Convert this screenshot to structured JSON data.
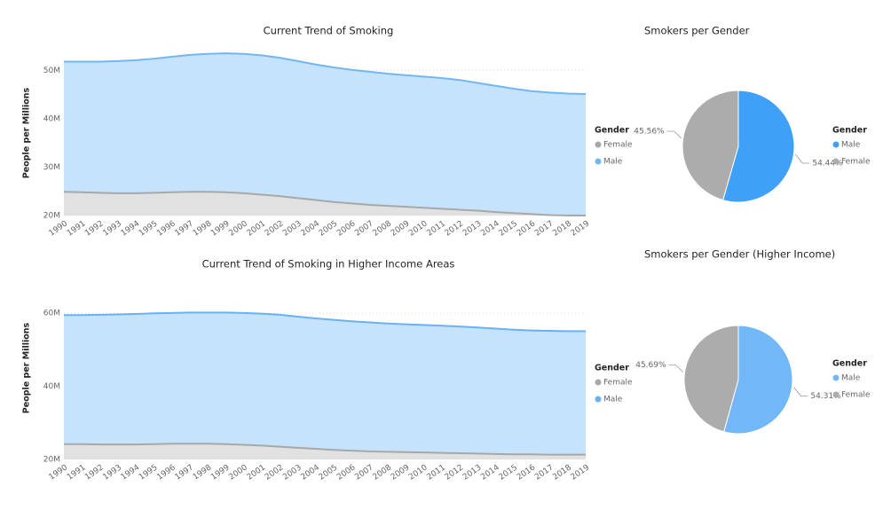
{
  "chart_data": [
    {
      "type": "area",
      "title": "Current Trend of Smoking",
      "y_label": "People per Millions",
      "categories": [
        "1990",
        "1991",
        "1992",
        "1993",
        "1994",
        "1995",
        "1996",
        "1997",
        "1998",
        "1999",
        "2000",
        "2001",
        "2002",
        "2003",
        "2004",
        "2005",
        "2006",
        "2007",
        "2008",
        "2009",
        "2010",
        "2011",
        "2012",
        "2013",
        "2014",
        "2015",
        "2016",
        "2017",
        "2018",
        "2019"
      ],
      "series": [
        {
          "name": "Female",
          "color": "#a8a8a8",
          "fill": "#e1e1e1",
          "values": [
            24.9,
            24.8,
            24.7,
            24.6,
            24.6,
            24.7,
            24.8,
            24.9,
            24.9,
            24.8,
            24.6,
            24.3,
            24.0,
            23.6,
            23.2,
            22.8,
            22.5,
            22.2,
            22.0,
            21.8,
            21.6,
            21.4,
            21.2,
            21.0,
            20.7,
            20.5,
            20.3,
            20.1,
            20.0,
            20.0
          ]
        },
        {
          "name": "Male",
          "color": "#72b6f5",
          "fill": "#c6e3fd",
          "values": [
            51.8,
            51.8,
            51.8,
            51.9,
            52.1,
            52.4,
            52.8,
            53.2,
            53.4,
            53.5,
            53.4,
            53.1,
            52.6,
            51.9,
            51.2,
            50.6,
            50.1,
            49.7,
            49.3,
            49.0,
            48.7,
            48.4,
            48.0,
            47.4,
            46.8,
            46.2,
            45.7,
            45.4,
            45.2,
            45.1
          ]
        }
      ],
      "ylim": [
        20,
        55
      ],
      "yticks": [
        {
          "value": 20,
          "label": "20M"
        },
        {
          "value": 30,
          "label": "30M"
        },
        {
          "value": 40,
          "label": "40M"
        },
        {
          "value": 50,
          "label": "50M"
        }
      ],
      "grid": true,
      "legend_title": "Gender",
      "legend_position": "right"
    },
    {
      "type": "pie",
      "title": "Smokers per Gender",
      "categories": [
        "Male",
        "Female"
      ],
      "values": [
        54.44,
        45.56
      ],
      "value_labels": [
        "54.44%",
        "45.56%"
      ],
      "colors": [
        "#3ea0f7",
        "#acacac"
      ],
      "legend_title": "Gender",
      "legend_position": "right"
    },
    {
      "type": "area",
      "title": "Current Trend of Smoking in Higher Income Areas",
      "y_label": "People per Millions",
      "categories": [
        "1990",
        "1991",
        "1992",
        "1993",
        "1994",
        "1995",
        "1996",
        "1997",
        "1998",
        "1999",
        "2000",
        "2001",
        "2002",
        "2003",
        "2004",
        "2005",
        "2006",
        "2007",
        "2008",
        "2009",
        "2010",
        "2011",
        "2012",
        "2013",
        "2014",
        "2015",
        "2016",
        "2017",
        "2018",
        "2019"
      ],
      "series": [
        {
          "name": "Female",
          "color": "#a8a8a8",
          "fill": "#e1e1e1",
          "values": [
            24.2,
            24.2,
            24.1,
            24.1,
            24.1,
            24.2,
            24.3,
            24.3,
            24.3,
            24.2,
            24.0,
            23.8,
            23.5,
            23.2,
            22.9,
            22.6,
            22.4,
            22.2,
            22.1,
            22.0,
            21.9,
            21.8,
            21.7,
            21.6,
            21.5,
            21.4,
            21.4,
            21.3,
            21.3,
            21.3
          ]
        },
        {
          "name": "Male",
          "color": "#6ab0f5",
          "fill": "#c6e3fd",
          "values": [
            59.5,
            59.5,
            59.6,
            59.7,
            59.8,
            60.0,
            60.1,
            60.2,
            60.2,
            60.2,
            60.1,
            59.9,
            59.6,
            59.1,
            58.6,
            58.2,
            57.8,
            57.5,
            57.2,
            57.0,
            56.8,
            56.6,
            56.4,
            56.1,
            55.8,
            55.5,
            55.3,
            55.2,
            55.1,
            55.1
          ]
        }
      ],
      "ylim": [
        20,
        62
      ],
      "yticks": [
        {
          "value": 20,
          "label": "20M"
        },
        {
          "value": 40,
          "label": "40M"
        },
        {
          "value": 60,
          "label": "60M"
        }
      ],
      "grid": true,
      "legend_title": "Gender",
      "legend_position": "right"
    },
    {
      "type": "pie",
      "title": "Smokers per Gender (Higher Income)",
      "categories": [
        "Male",
        "Female"
      ],
      "values": [
        54.31,
        45.69
      ],
      "value_labels": [
        "54.31%",
        "45.69%"
      ],
      "colors": [
        "#72b8f9",
        "#acacac"
      ],
      "legend_title": "Gender",
      "legend_position": "right"
    }
  ]
}
